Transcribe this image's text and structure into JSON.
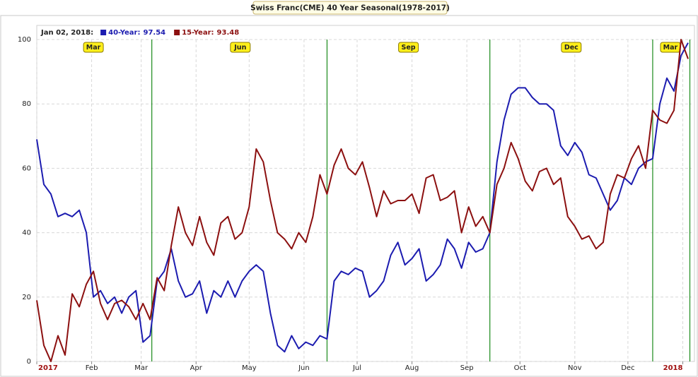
{
  "chart_data": {
    "type": "line",
    "title": "Swiss Franc(CME) 40 Year Seasonal(1978-2017)",
    "legend_date": "Jan 02, 2018:",
    "x": [
      0,
      4,
      8,
      12,
      16,
      20,
      24,
      28,
      32,
      36,
      40,
      44,
      48,
      52,
      56,
      60,
      64,
      68,
      72,
      76,
      80,
      84,
      88,
      92,
      96,
      100,
      104,
      108,
      112,
      116,
      120,
      124,
      128,
      132,
      136,
      140,
      144,
      148,
      152,
      156,
      160,
      164,
      168,
      172,
      176,
      180,
      184,
      188,
      192,
      196,
      200,
      204,
      208,
      212,
      216,
      220,
      224,
      228,
      232,
      236,
      240,
      244,
      248,
      252,
      256,
      260,
      264,
      268,
      272,
      276,
      280,
      284,
      288,
      292,
      296,
      300,
      304,
      308,
      312,
      316,
      320,
      324,
      328,
      332,
      336,
      340,
      344,
      348,
      352,
      356,
      360,
      364,
      368
    ],
    "series": [
      {
        "name": "40-Year:",
        "current_value": 97.54,
        "color": "#1c1cb0",
        "values": [
          69,
          55,
          52,
          45,
          46,
          45,
          47,
          40,
          20,
          22,
          18,
          20,
          15,
          20,
          22,
          6,
          8,
          25,
          28,
          35,
          25,
          20,
          21,
          25,
          15,
          22,
          20,
          25,
          20,
          25,
          28,
          30,
          28,
          15,
          5,
          3,
          8,
          4,
          6,
          5,
          8,
          7,
          25,
          28,
          27,
          29,
          28,
          20,
          22,
          25,
          33,
          37,
          30,
          32,
          35,
          25,
          27,
          30,
          38,
          35,
          29,
          37,
          34,
          35,
          40,
          62,
          75,
          83,
          85,
          85,
          82,
          80,
          80,
          78,
          67,
          64,
          68,
          65,
          58,
          57,
          52,
          47,
          50,
          57,
          55,
          60,
          62,
          63,
          80,
          88,
          84,
          95,
          99
        ]
      },
      {
        "name": "15-Year:",
        "current_value": 93.48,
        "color": "#8c1010",
        "values": [
          19,
          5,
          0,
          8,
          2,
          21,
          17,
          24,
          28,
          18,
          13,
          18,
          19,
          17,
          13,
          18,
          13,
          26,
          22,
          36,
          48,
          40,
          36,
          45,
          37,
          33,
          43,
          45,
          38,
          40,
          48,
          66,
          62,
          50,
          40,
          38,
          35,
          40,
          37,
          45,
          58,
          52,
          61,
          66,
          60,
          58,
          62,
          54,
          45,
          53,
          49,
          50,
          50,
          52,
          46,
          57,
          58,
          50,
          51,
          53,
          40,
          48,
          42,
          45,
          40,
          55,
          60,
          68,
          63,
          56,
          53,
          59,
          60,
          55,
          57,
          45,
          42,
          38,
          39,
          35,
          37,
          52,
          58,
          57,
          63,
          67,
          60,
          78,
          75,
          74,
          78,
          100,
          94
        ]
      }
    ],
    "xlim": [
      0,
      370
    ],
    "xticks": [
      {
        "value": 0,
        "label": "2017"
      },
      {
        "value": 31,
        "label": "Feb"
      },
      {
        "value": 59,
        "label": "Mar"
      },
      {
        "value": 90,
        "label": "Apr"
      },
      {
        "value": 120,
        "label": "May"
      },
      {
        "value": 151,
        "label": "Jun"
      },
      {
        "value": 181,
        "label": "Jul"
      },
      {
        "value": 212,
        "label": "Aug"
      },
      {
        "value": 243,
        "label": "Sep"
      },
      {
        "value": 273,
        "label": "Oct"
      },
      {
        "value": 304,
        "label": "Nov"
      },
      {
        "value": 334,
        "label": "Dec"
      },
      {
        "value": 365,
        "label": "2018"
      }
    ],
    "ylim": [
      0,
      100
    ],
    "yticks": [
      0,
      20,
      40,
      60,
      80,
      100
    ],
    "grid": true,
    "contract_lines": [
      65,
      164,
      256,
      348,
      369
    ],
    "contract_line_color": "#1a8a1a",
    "contract_markers": [
      {
        "label": "Mar",
        "x": 32
      },
      {
        "label": "Jun",
        "x": 115
      },
      {
        "label": "Sep",
        "x": 210
      },
      {
        "label": "Dec",
        "x": 302
      },
      {
        "label": "Mar",
        "x": 358
      }
    ]
  }
}
